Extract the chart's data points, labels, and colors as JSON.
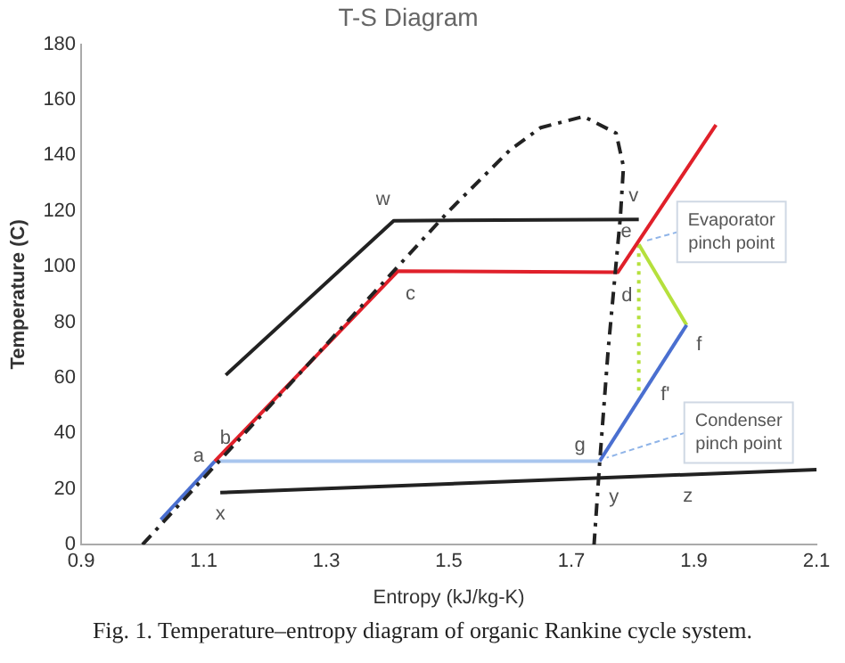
{
  "chart_data": {
    "type": "line",
    "title": "T-S Diagram",
    "xlabel": "Entropy (kJ/kg-K)",
    "ylabel": "Temperature (C)",
    "xlim": [
      0.9,
      2.1
    ],
    "xticks": [
      0.9,
      1.1,
      1.3,
      1.5,
      1.7,
      1.9,
      2.1
    ],
    "ylim": [
      0,
      180
    ],
    "yticks": [
      0,
      20,
      40,
      60,
      80,
      100,
      120,
      140,
      160,
      180
    ],
    "grid": false,
    "legend": false,
    "marker": "none",
    "series": [
      {
        "color": "#222222",
        "line_style": "dashed",
        "x": [
          1.0,
          1.1,
          1.2,
          1.3,
          1.4,
          1.5,
          1.6,
          1.65,
          1.72,
          1.773,
          1.785,
          1.78,
          1.76,
          1.746,
          1.737
        ],
        "values": [
          0,
          24,
          48,
          72,
          96,
          120,
          142,
          150,
          154,
          148,
          136,
          118,
          70,
          29,
          0
        ]
      },
      {
        "color": "#222222",
        "x": [
          1.136,
          1.41,
          1.81
        ],
        "values": [
          61,
          116.5,
          117
        ]
      },
      {
        "color": "#222222",
        "x": [
          1.127,
          2.1
        ],
        "values": [
          18.7,
          27
        ]
      },
      {
        "color": "#e0202a",
        "x": [
          1.118,
          1.417,
          1.776,
          1.936
        ],
        "values": [
          30,
          98.4,
          98,
          151
        ]
      },
      {
        "color": "#4a6fd0",
        "x": [
          1.03,
          1.118
        ],
        "values": [
          9,
          30
        ]
      },
      {
        "color": "#a9c6ee",
        "x": [
          1.118,
          1.746
        ],
        "values": [
          30,
          30
        ]
      },
      {
        "color": "#4a6fd0",
        "x": [
          1.746,
          1.888
        ],
        "values": [
          30,
          79
        ]
      },
      {
        "color": "#b5e03c",
        "x": [
          1.81,
          1.888
        ],
        "values": [
          108,
          79
        ]
      },
      {
        "color": "#b5e03c",
        "line_style": "dotted",
        "x": [
          1.81,
          1.81
        ],
        "values": [
          108,
          55
        ]
      }
    ],
    "annotations": [
      {
        "text": "a",
        "x": 1.118,
        "y": 30
      },
      {
        "text": "b",
        "x": 1.118,
        "y": 30
      },
      {
        "text": "c",
        "x": 1.417,
        "y": 98.4
      },
      {
        "text": "d",
        "x": 1.776,
        "y": 98
      },
      {
        "text": "e",
        "x": 1.81,
        "y": 108
      },
      {
        "text": "v",
        "x": 1.81,
        "y": 117
      },
      {
        "text": "w",
        "x": 1.41,
        "y": 116.5
      },
      {
        "text": "f",
        "x": 1.888,
        "y": 79
      },
      {
        "text": "f'",
        "x": 1.83,
        "y": 59
      },
      {
        "text": "g",
        "x": 1.746,
        "y": 30
      },
      {
        "text": "x",
        "x": 1.127,
        "y": 18.7
      },
      {
        "text": "y",
        "x": 1.746,
        "y": 24
      },
      {
        "text": "z",
        "x": 1.89,
        "y": 25
      },
      {
        "text": "Evaporator pinch point",
        "x": 1.81,
        "y": 108
      },
      {
        "text": "Condenser pinch point",
        "x": 1.746,
        "y": 30
      },
      "Fig. 1. Temperature–entropy diagram of organic Rankine cycle system."
    ]
  }
}
